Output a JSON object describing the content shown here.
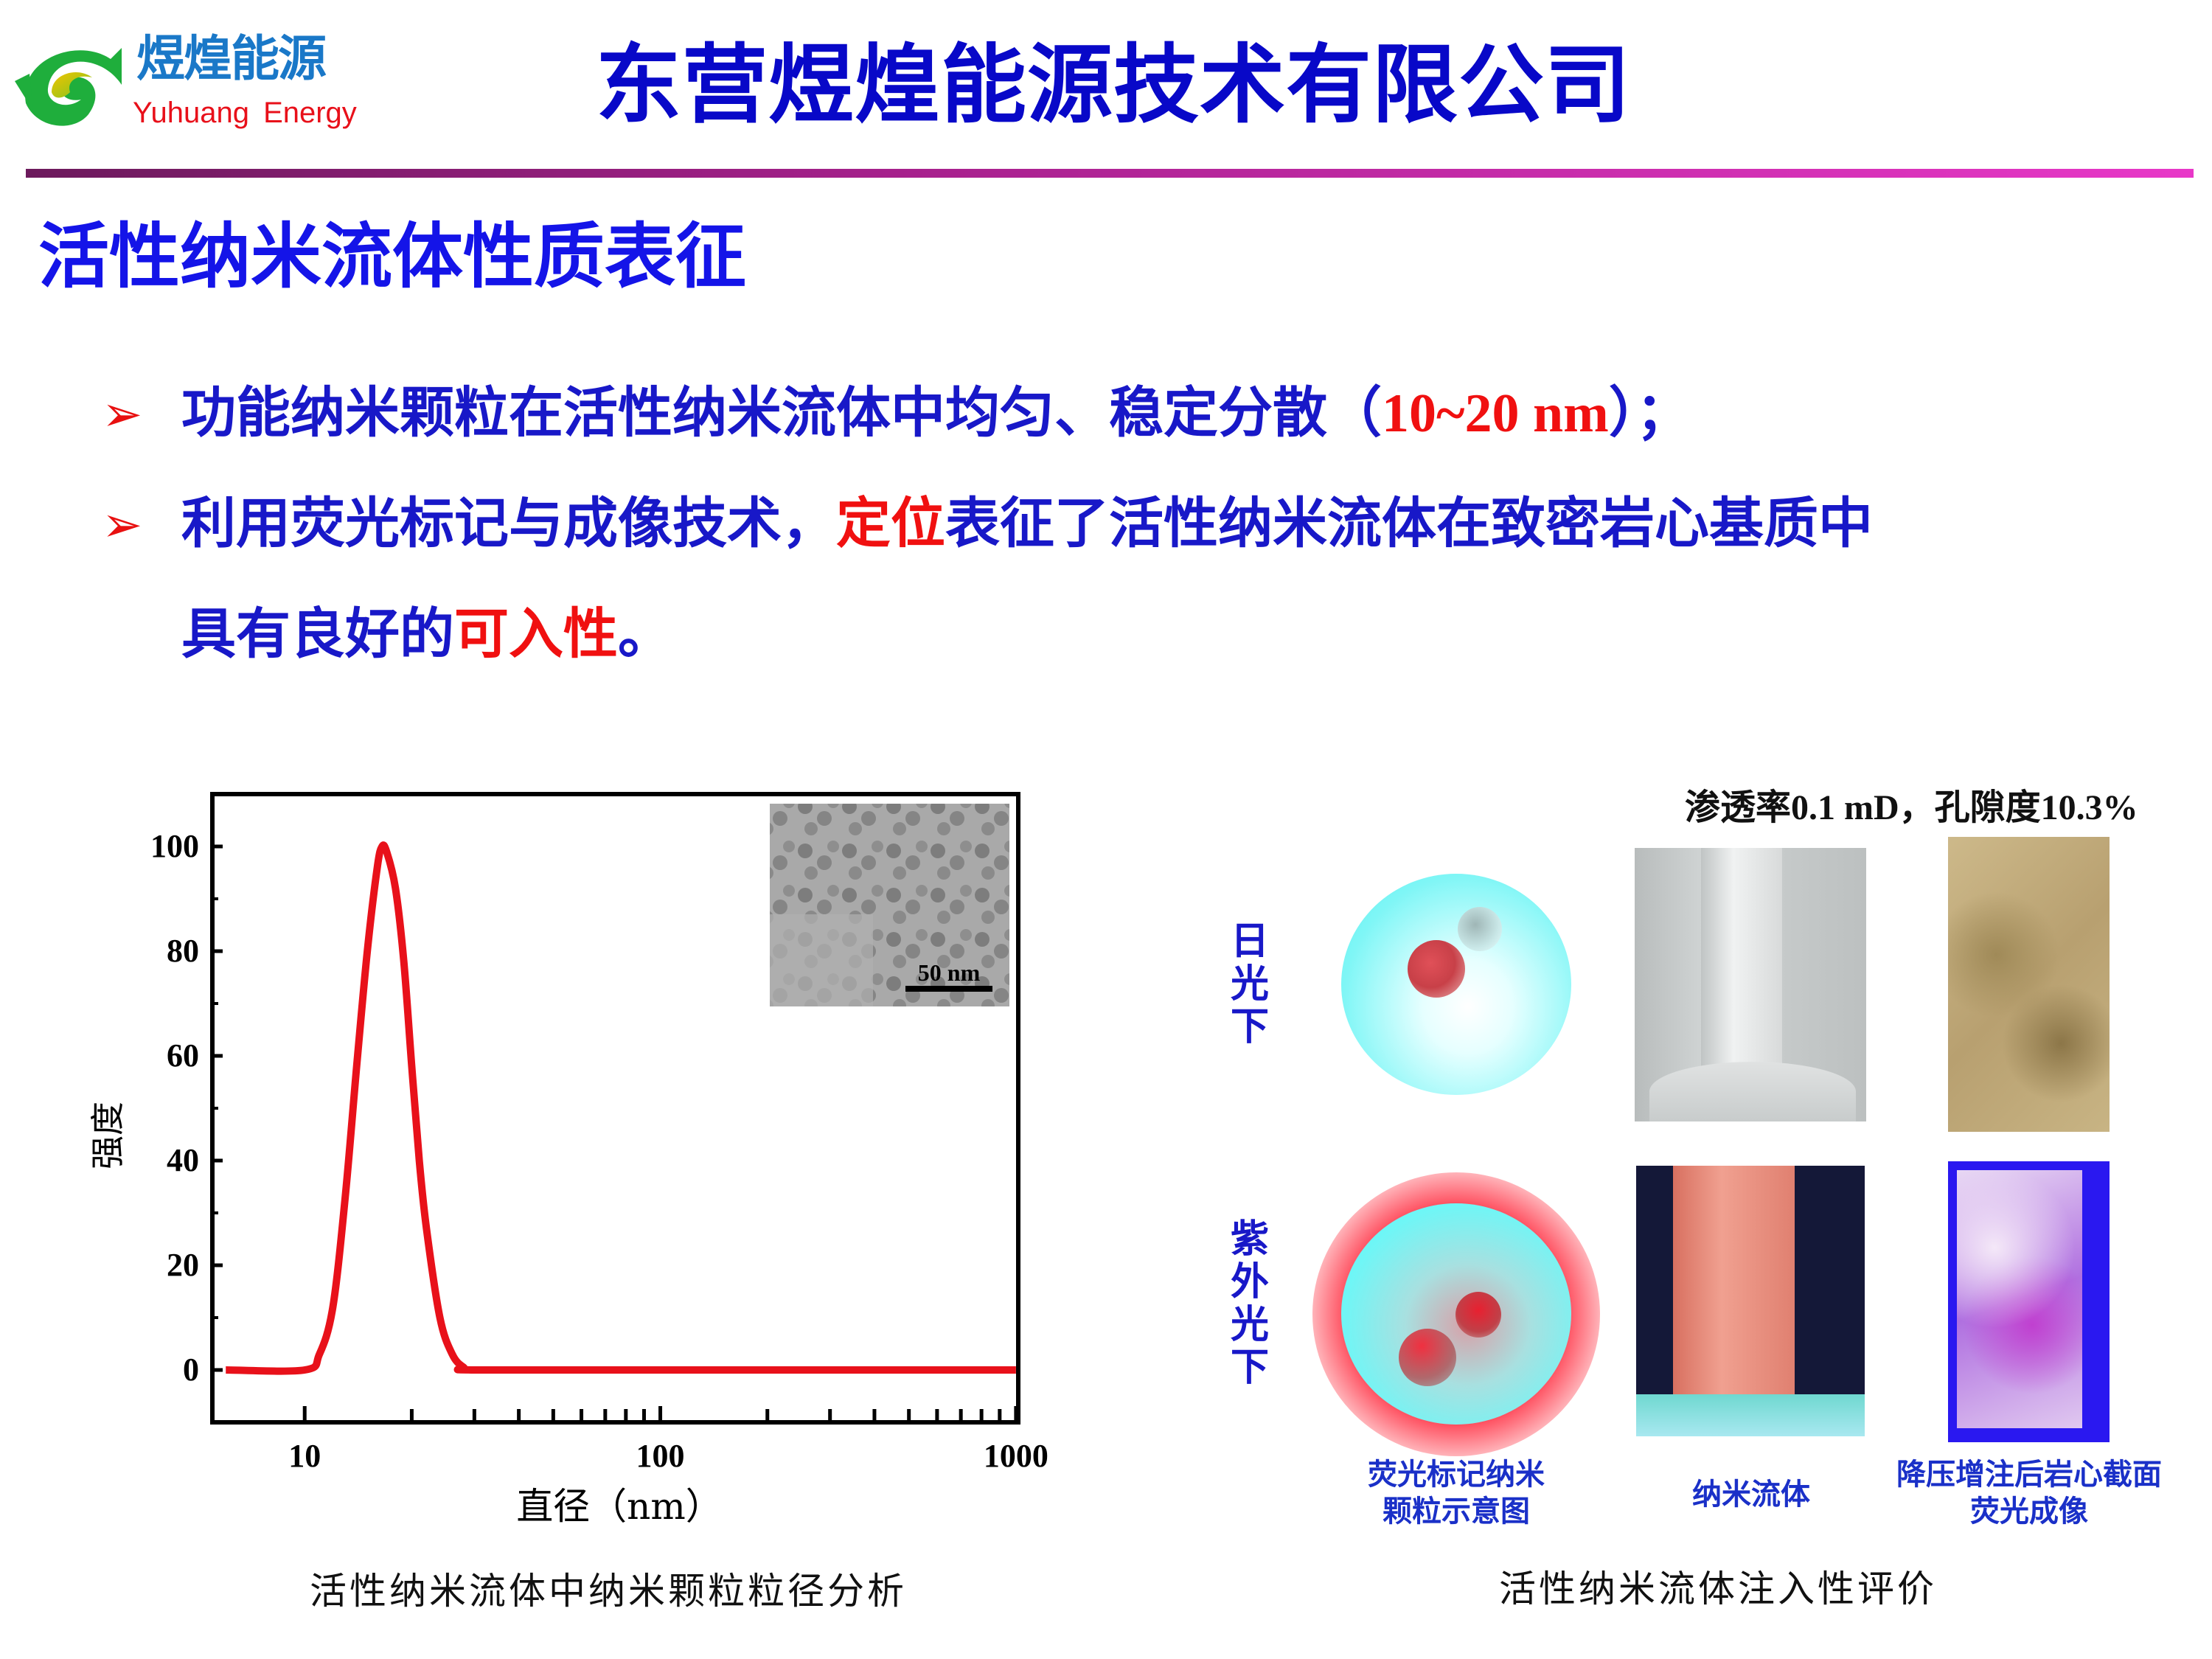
{
  "header": {
    "logo_cn": "煜煌能源",
    "logo_en": "Yuhuang Energy",
    "company": "东营煜煌能源技术有限公司"
  },
  "section_title": "活性纳米流体性质表征",
  "bullets": [
    {
      "pre": "功能纳米颗粒在活性纳米流体中均匀、稳定分散（",
      "highlight": "10~20 nm",
      "post": "）；"
    },
    {
      "pre": "利用荧光标记与成像技术，",
      "highlight": "定位",
      "post": "表征了活性纳米流体在致密岩心基质中"
    },
    {
      "pre": "具有良好的",
      "highlight": "可入性",
      "post": "。"
    }
  ],
  "colors": {
    "title_blue": "#0808c8",
    "highlight_red": "#f01010",
    "curve_red": "#e8111a",
    "rule_start": "#6c1a5c",
    "rule_end": "#e838c8"
  },
  "chart_data": {
    "type": "line",
    "xlabel": "直径（nm）",
    "ylabel": "强度",
    "xscale": "log",
    "xlim": [
      5.5,
      1015
    ],
    "ylim": [
      -10,
      110
    ],
    "yticks": [
      0,
      20,
      40,
      60,
      80,
      100
    ],
    "xticks": [
      10,
      100,
      1000
    ],
    "grid": false,
    "series": [
      {
        "x": [
          6,
          10,
          11,
          12,
          13,
          14,
          15,
          16,
          16.5,
          17,
          18,
          19,
          20,
          21,
          22,
          24,
          26,
          28,
          30,
          100,
          1000
        ],
        "y": [
          0,
          0,
          3,
          12,
          33,
          58,
          80,
          96,
          100,
          99,
          92,
          78,
          58,
          40,
          27,
          10,
          3,
          0.5,
          0,
          0,
          0
        ]
      }
    ],
    "inset": {
      "scale_bar": "50 nm"
    }
  },
  "left_caption": "活性纳米流体中纳米颗粒粒径分析",
  "right_panel": {
    "metrics": "渗透率0.1 mD，孔隙度10.3%",
    "row_labels": [
      "日光下",
      "紫外光下"
    ],
    "captions": [
      "荧光标记纳米\n颗粒示意图",
      "纳米流体",
      "降压增注后岩心截面\n荧光成像"
    ],
    "caption_lines": [
      [
        "荧光标记纳米",
        "颗粒示意图"
      ],
      [
        "纳米流体"
      ],
      [
        "降压增注后岩心截面",
        "荧光成像"
      ]
    ]
  },
  "right_caption": "活性纳米流体注入性评价"
}
